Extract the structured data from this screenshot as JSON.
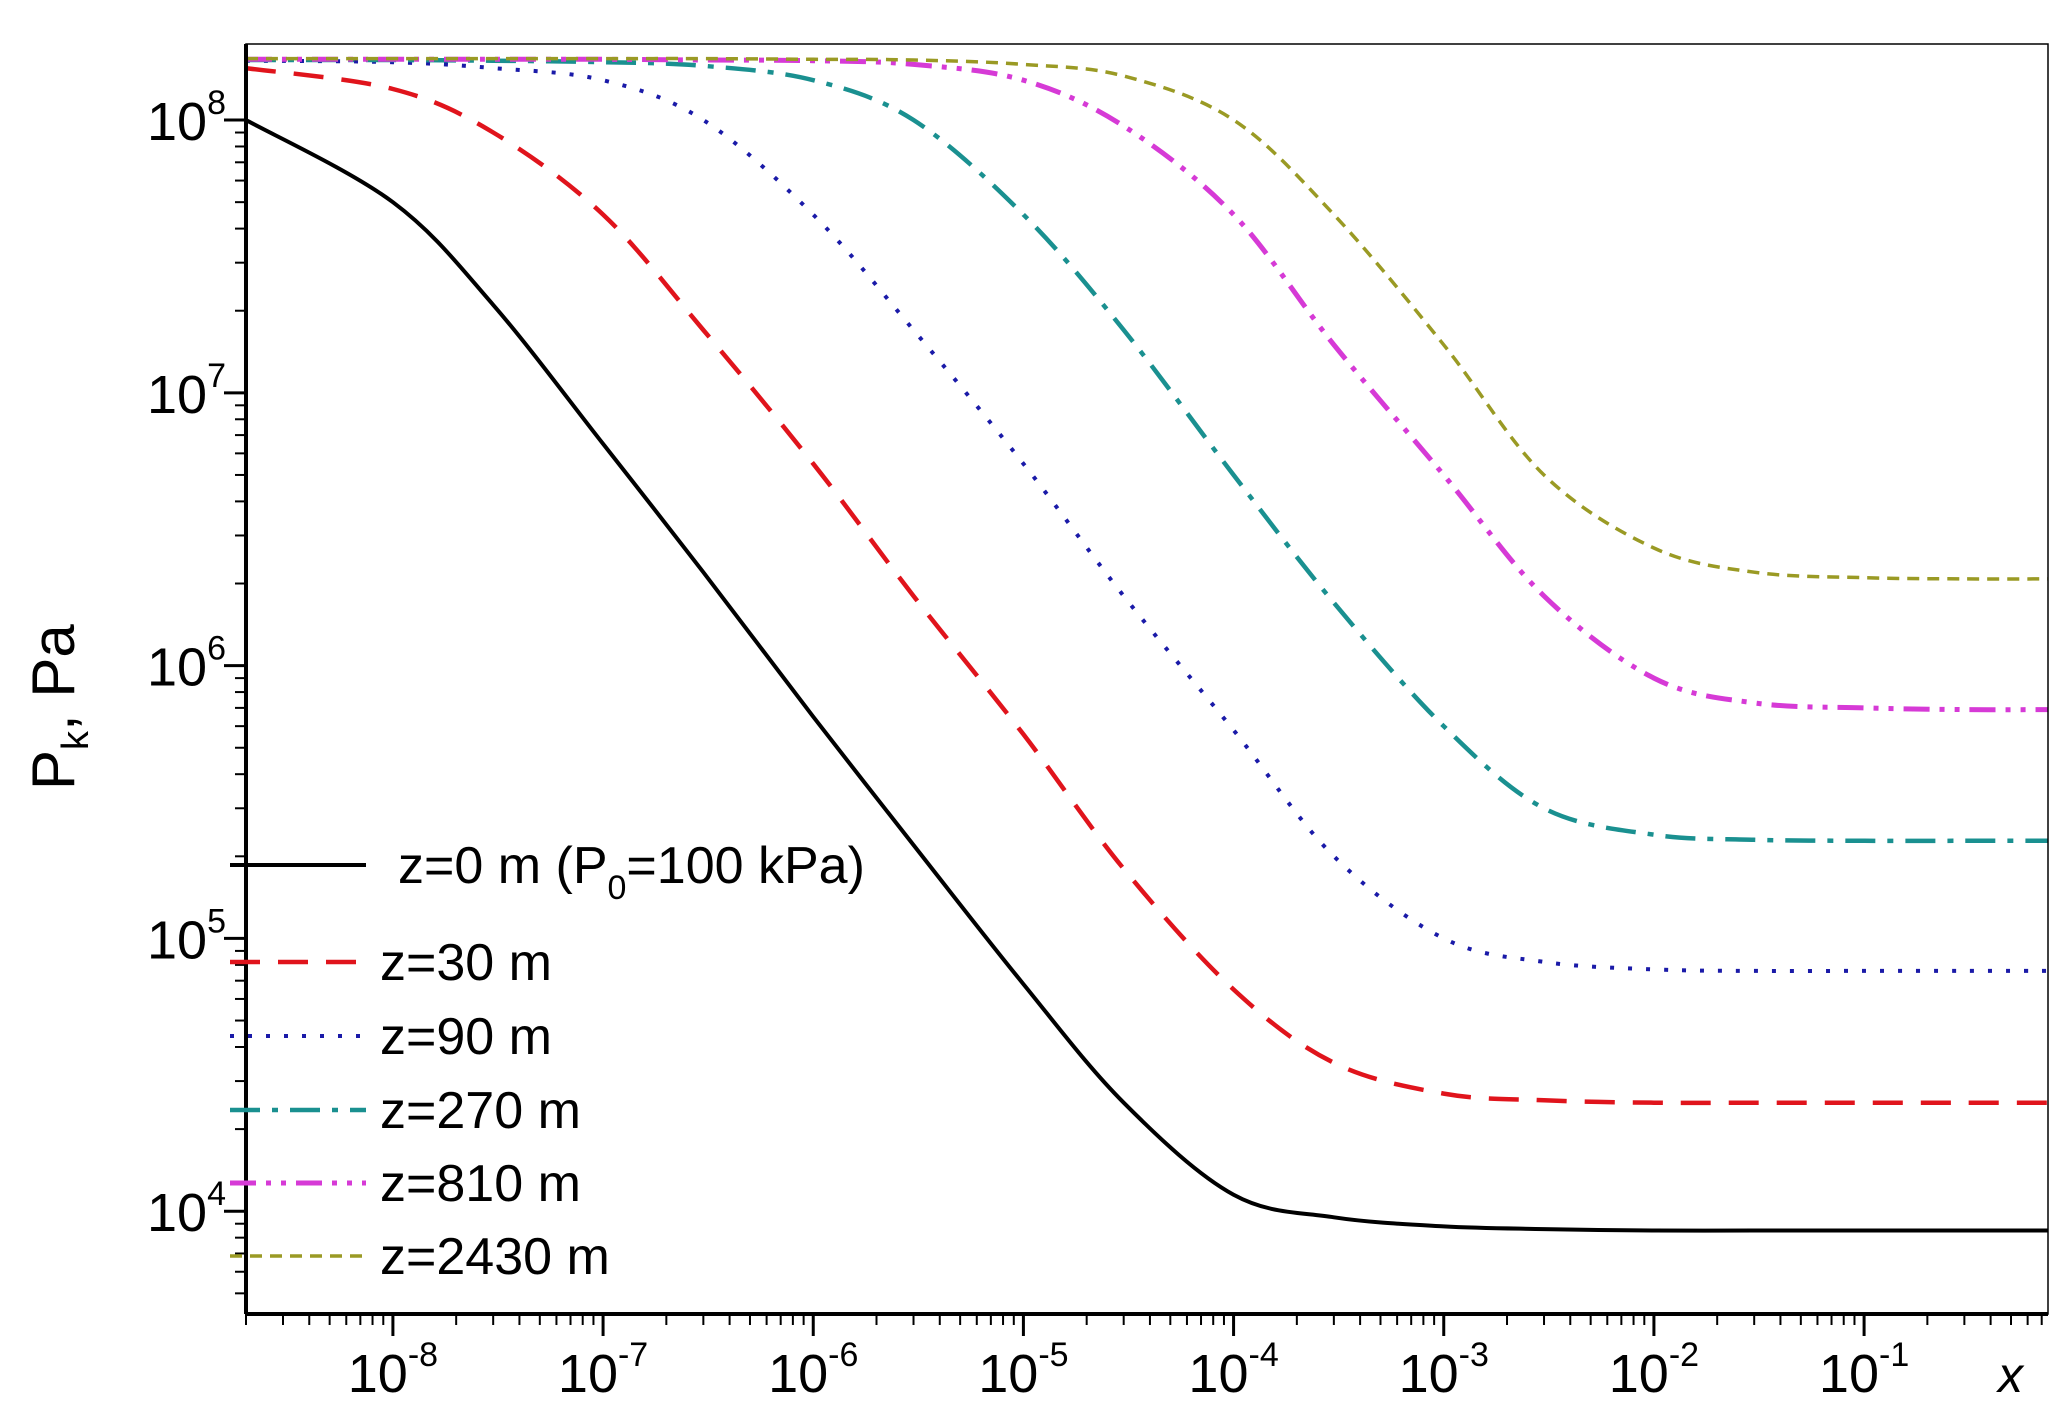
{
  "chart_data": {
    "type": "line",
    "title": "",
    "xlabel": "x",
    "ylabel_main": "P",
    "ylabel_sub": "k",
    "ylabel_rest": ", Pa",
    "x_scale": "log",
    "y_scale": "log",
    "xlim": [
      2e-09,
      0.75
    ],
    "ylim": [
      4200,
      190000000
    ],
    "x_ticks": [
      {
        "value": 1e-08,
        "base": "10",
        "exp": "-8"
      },
      {
        "value": 1e-07,
        "base": "10",
        "exp": "-7"
      },
      {
        "value": 1e-06,
        "base": "10",
        "exp": "-6"
      },
      {
        "value": 1e-05,
        "base": "10",
        "exp": "-5"
      },
      {
        "value": 0.0001,
        "base": "10",
        "exp": "-4"
      },
      {
        "value": 0.001,
        "base": "10",
        "exp": "-3"
      },
      {
        "value": 0.01,
        "base": "10",
        "exp": "-2"
      },
      {
        "value": 0.1,
        "base": "10",
        "exp": "-1"
      }
    ],
    "y_ticks": [
      {
        "value": 10000,
        "base": "10",
        "exp": "4"
      },
      {
        "value": 100000,
        "base": "10",
        "exp": "5"
      },
      {
        "value": 1000000,
        "base": "10",
        "exp": "6"
      },
      {
        "value": 10000000,
        "base": "10",
        "exp": "7"
      },
      {
        "value": 100000000,
        "base": "10",
        "exp": "8"
      }
    ],
    "grid": false,
    "legend_position": "bottom-left",
    "series": [
      {
        "name": "z=0 m (P0=100 kPa)",
        "label_pre": "z=0 m (P",
        "label_sub": "0",
        "label_post": "=100 kPa)",
        "color": "#000000",
        "dash": "solid",
        "x": [
          2e-09,
          1e-08,
          3e-08,
          1e-07,
          3e-07,
          1e-06,
          3e-06,
          1e-05,
          3e-05,
          0.0001,
          0.0003,
          0.001,
          0.003,
          0.01,
          0.03,
          0.1,
          0.3,
          0.75
        ],
        "y": [
          100000000,
          50000000,
          21000000,
          6500000,
          2200000,
          650000,
          220000,
          68000,
          25000,
          11500,
          9500,
          8800,
          8600,
          8500,
          8500,
          8500,
          8500,
          8500
        ]
      },
      {
        "name": "z=30 m",
        "label_pre": "z=30 m",
        "label_sub": "",
        "label_post": "",
        "color": "#e0141c",
        "dash": "dashed",
        "x": [
          2e-09,
          1e-08,
          3e-08,
          1e-07,
          3e-07,
          1e-06,
          3e-06,
          1e-05,
          3e-05,
          0.0001,
          0.0003,
          0.001,
          0.003,
          0.01,
          0.03,
          0.1,
          0.3,
          0.75
        ],
        "y": [
          155000000,
          130000000,
          90000000,
          45000000,
          17000000,
          5500000,
          1800000,
          560000,
          180000,
          65000,
          35000,
          27000,
          25500,
          25000,
          25000,
          25000,
          25000,
          25000
        ]
      },
      {
        "name": "z=90 m",
        "label_pre": "z=90 m",
        "label_sub": "",
        "label_post": "",
        "color": "#1a1aa8",
        "dash": "dotted",
        "x": [
          2e-09,
          1e-08,
          3e-08,
          1e-07,
          3e-07,
          1e-06,
          3e-06,
          1e-05,
          3e-05,
          0.0001,
          0.0003,
          0.001,
          0.003,
          0.01,
          0.03,
          0.1,
          0.3,
          0.75
        ],
        "y": [
          165000000,
          163000000,
          155000000,
          140000000,
          100000000,
          45000000,
          17000000,
          5500000,
          1800000,
          580000,
          200000,
          100000,
          82000,
          77000,
          76000,
          76000,
          76000,
          76000
        ]
      },
      {
        "name": "z=270 m",
        "label_pre": "z=270 m",
        "label_sub": "",
        "label_post": "",
        "color": "#1a9090",
        "dash": "dashdot",
        "x": [
          2e-09,
          1e-08,
          3e-08,
          1e-07,
          3e-07,
          1e-06,
          3e-06,
          1e-05,
          3e-05,
          0.0001,
          0.0003,
          0.001,
          0.003,
          0.01,
          0.03,
          0.1,
          0.3,
          0.75
        ],
        "y": [
          166000000,
          166000000,
          165000000,
          163000000,
          158000000,
          140000000,
          100000000,
          45000000,
          17000000,
          5000000,
          1700000,
          600000,
          300000,
          240000,
          230000,
          228000,
          228000,
          228000
        ]
      },
      {
        "name": "z=810 m",
        "label_pre": "z=810 m",
        "label_sub": "",
        "label_post": "",
        "color": "#d63ad6",
        "dash": "dashdotdot",
        "x": [
          2e-09,
          1e-08,
          3e-08,
          1e-07,
          3e-07,
          1e-06,
          3e-06,
          1e-05,
          3e-05,
          0.0001,
          0.0003,
          0.001,
          0.003,
          0.01,
          0.03,
          0.1,
          0.3,
          0.75
        ],
        "y": [
          167000000,
          167000000,
          167000000,
          167000000,
          166000000,
          165000000,
          160000000,
          140000000,
          95000000,
          45000000,
          15000000,
          5000000,
          1800000,
          900000,
          730000,
          700000,
          690000,
          690000
        ]
      },
      {
        "name": "z=2430 m",
        "label_pre": "z=2430 m",
        "label_sub": "",
        "label_post": "",
        "color": "#9a9a24",
        "dash": "shortdash",
        "x": [
          2e-09,
          1e-08,
          3e-08,
          1e-07,
          3e-07,
          1e-06,
          3e-06,
          1e-05,
          3e-05,
          0.0001,
          0.0003,
          0.001,
          0.003,
          0.01,
          0.03,
          0.1,
          0.3,
          0.75
        ],
        "y": [
          168000000,
          168000000,
          168000000,
          168000000,
          168000000,
          167000000,
          166000000,
          160000000,
          145000000,
          100000000,
          45000000,
          15000000,
          5000000,
          2700000,
          2200000,
          2100000,
          2080000,
          2080000
        ]
      }
    ]
  }
}
